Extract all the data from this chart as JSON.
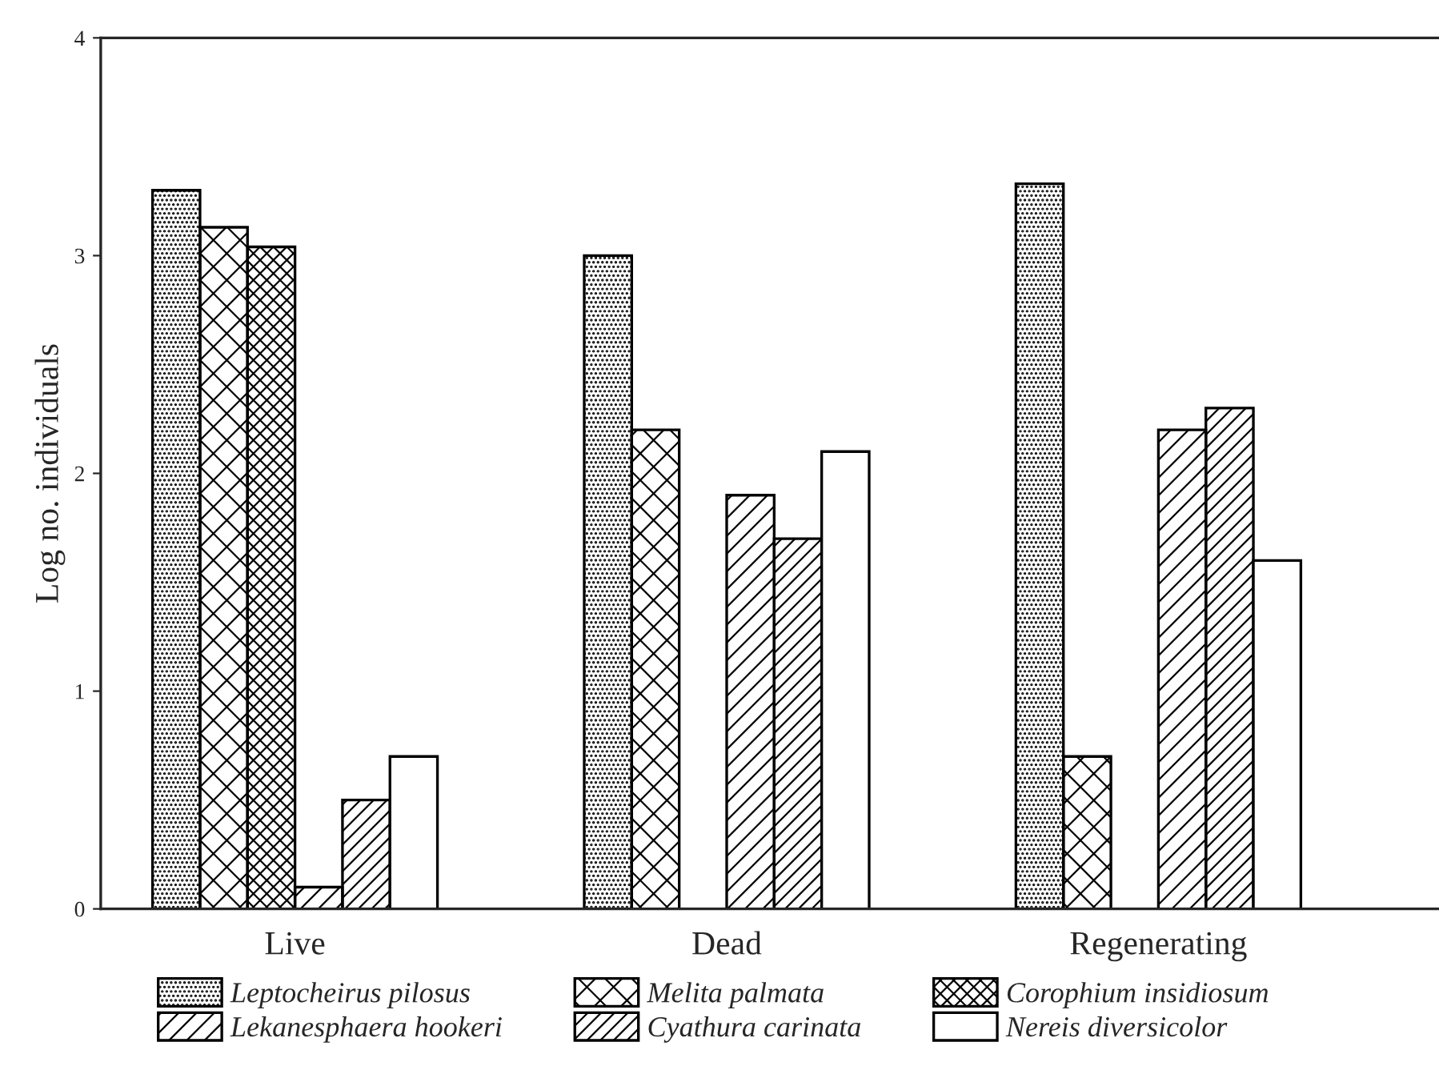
{
  "chart_data": {
    "type": "bar",
    "ylabel": "Log no. individuals",
    "categories": [
      "Live",
      "Dead",
      "Regenerating"
    ],
    "series": [
      {
        "name": "Leptocheirus pilosus",
        "color": "#000000",
        "values": [
          3.3,
          3.0,
          3.33
        ]
      },
      {
        "name": "Melita palmata",
        "color": "#000000",
        "values": [
          3.13,
          2.2,
          0.7
        ]
      },
      {
        "name": "Corophium insidiosum",
        "color": "#000000",
        "values": [
          3.04,
          null,
          null
        ]
      },
      {
        "name": "Lekanesphaera hookeri",
        "color": "#000000",
        "values": [
          0.1,
          1.9,
          2.2
        ]
      },
      {
        "name": "Cyathura carinata",
        "color": "#000000",
        "values": [
          0.5,
          1.7,
          2.3
        ]
      },
      {
        "name": "Nereis diversicolor",
        "color": "#ffffff",
        "values": [
          0.7,
          2.1,
          1.6
        ]
      }
    ],
    "ylim": [
      0,
      4
    ],
    "yticks": [
      0,
      1,
      2,
      3,
      4
    ],
    "grid": false,
    "legend": "bottom"
  }
}
